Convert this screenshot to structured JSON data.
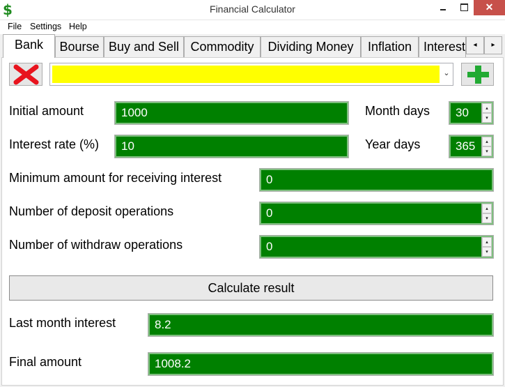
{
  "window": {
    "title": "Financial Calculator",
    "app_icon": "$",
    "close_glyph": "✕"
  },
  "menu": [
    "File",
    "Settings",
    "Help"
  ],
  "tabs": [
    "Bank",
    "Bourse",
    "Buy and Sell",
    "Commodity",
    "Dividing Money",
    "Inflation",
    "Interest"
  ],
  "tab_scroll": {
    "left": "◂",
    "right": "▸"
  },
  "selected_tab": "Bank",
  "colors": {
    "field_bg": "#008000",
    "combo_bg": "#ffff00",
    "delete": "#e8141e",
    "add": "#22aa33",
    "close_btn": "#c7504a"
  },
  "icons": {
    "delete": "red-x-icon",
    "add": "green-plus-icon",
    "app": "dollar-icon"
  },
  "combo": {
    "arrow": "⌄"
  },
  "spin": {
    "up": "▴",
    "down": "▾"
  },
  "bank": {
    "initial_amount_label": "Initial amount",
    "initial_amount": "1000",
    "interest_rate_label": "Interest rate (%)",
    "interest_rate": "10",
    "month_days_label": "Month days",
    "month_days": "30",
    "year_days_label": "Year days",
    "year_days": "365",
    "min_amount_label": "Minimum amount for receiving interest",
    "min_amount": "0",
    "deposit_ops_label": "Number of deposit operations",
    "deposit_ops": "0",
    "withdraw_ops_label": "Number of withdraw operations",
    "withdraw_ops": "0",
    "calculate_label": "Calculate result",
    "last_month_interest_label": "Last month interest",
    "last_month_interest": "8.2",
    "final_amount_label": "Final amount",
    "final_amount": "1008.2"
  }
}
